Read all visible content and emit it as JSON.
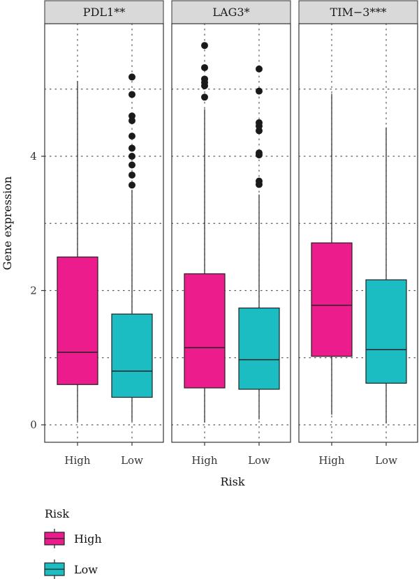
{
  "chart_data": {
    "type": "boxplot",
    "facets": [
      "PDL1**",
      "LAG3*",
      "TIM−3***"
    ],
    "categories": [
      "High",
      "Low"
    ],
    "xlabel": "Risk",
    "ylabel": "Gene expression",
    "ylim": [
      -0.15,
      6.0
    ],
    "yticks": [
      0,
      2,
      4
    ],
    "grid": "dotted",
    "legend": {
      "title": "Risk",
      "placement": "bottom-left",
      "items": [
        {
          "label": "High",
          "color": "#EC1C8C"
        },
        {
          "label": "Low",
          "color": "#1CBDC2"
        }
      ]
    },
    "boxes": [
      {
        "facet": "PDL1**",
        "group": "High",
        "lower_whisker": 0.05,
        "q1": 0.6,
        "median": 1.08,
        "q3": 2.5,
        "upper_whisker": 5.12,
        "outliers": []
      },
      {
        "facet": "PDL1**",
        "group": "Low",
        "lower_whisker": 0.05,
        "q1": 0.41,
        "median": 0.8,
        "q3": 1.65,
        "upper_whisker": 3.5,
        "outliers": [
          3.57,
          3.72,
          3.87,
          4.0,
          4.12,
          4.3,
          4.53,
          4.6,
          4.92,
          5.18
        ]
      },
      {
        "facet": "LAG3*",
        "group": "High",
        "lower_whisker": 0.04,
        "q1": 0.55,
        "median": 1.15,
        "q3": 2.25,
        "upper_whisker": 4.7,
        "outliers": [
          4.88,
          5.05,
          5.1,
          5.15,
          5.32,
          5.65
        ]
      },
      {
        "facet": "LAG3*",
        "group": "Low",
        "lower_whisker": 0.08,
        "q1": 0.53,
        "median": 0.97,
        "q3": 1.74,
        "upper_whisker": 3.43,
        "outliers": [
          3.58,
          3.63,
          4.02,
          4.05,
          4.38,
          4.45,
          4.5,
          4.97,
          5.3
        ]
      },
      {
        "facet": "TIM−3***",
        "group": "High",
        "lower_whisker": 0.15,
        "q1": 1.02,
        "median": 1.78,
        "q3": 2.71,
        "upper_whisker": 4.93,
        "outliers": []
      },
      {
        "facet": "TIM−3***",
        "group": "Low",
        "lower_whisker": 0.02,
        "q1": 0.62,
        "median": 1.12,
        "q3": 2.16,
        "upper_whisker": 4.43,
        "outliers": []
      }
    ]
  }
}
